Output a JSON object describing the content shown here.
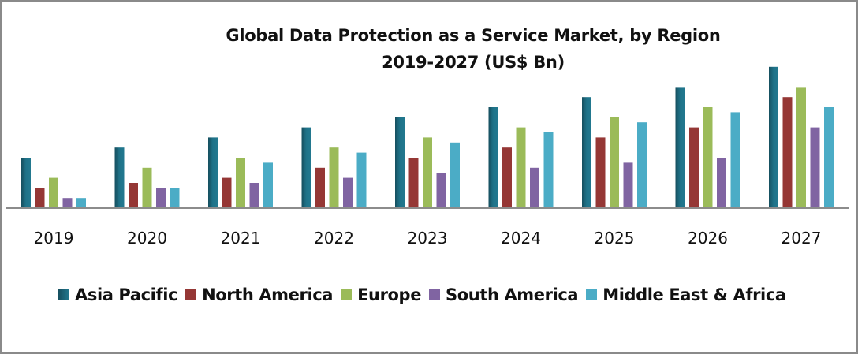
{
  "chart_data": {
    "type": "bar",
    "title": "Global Data Protection as a Service Market, by Region",
    "subtitle": "2019-2027 (US$ Bn)",
    "xlabel": "",
    "ylabel": "",
    "y_axis_visible": false,
    "value_units": "relative (no y-axis shown; estimated from bar heights)",
    "ylim": [
      0,
      15
    ],
    "grid": false,
    "legend_position": "bottom",
    "categories": [
      "2019",
      "2020",
      "2021",
      "2022",
      "2023",
      "2024",
      "2025",
      "2026",
      "2027"
    ],
    "series": [
      {
        "name": "Asia Pacific",
        "color": "#1f6f84",
        "values": [
          5,
          6,
          7,
          8,
          9,
          10,
          11,
          12,
          14
        ]
      },
      {
        "name": "North America",
        "color": "#953735",
        "values": [
          2,
          2.5,
          3,
          4,
          5,
          6,
          7,
          8,
          11
        ]
      },
      {
        "name": "Europe",
        "color": "#9bbb59",
        "values": [
          3,
          4,
          5,
          6,
          7,
          8,
          9,
          10,
          12
        ]
      },
      {
        "name": "South America",
        "color": "#8064a2",
        "values": [
          1,
          2,
          2.5,
          3,
          3.5,
          4,
          4.5,
          5,
          8
        ]
      },
      {
        "name": "Middle East & Africa",
        "color": "#4bacc6",
        "values": [
          1,
          2,
          4.5,
          5.5,
          6.5,
          7.5,
          8.5,
          9.5,
          10
        ]
      }
    ]
  }
}
